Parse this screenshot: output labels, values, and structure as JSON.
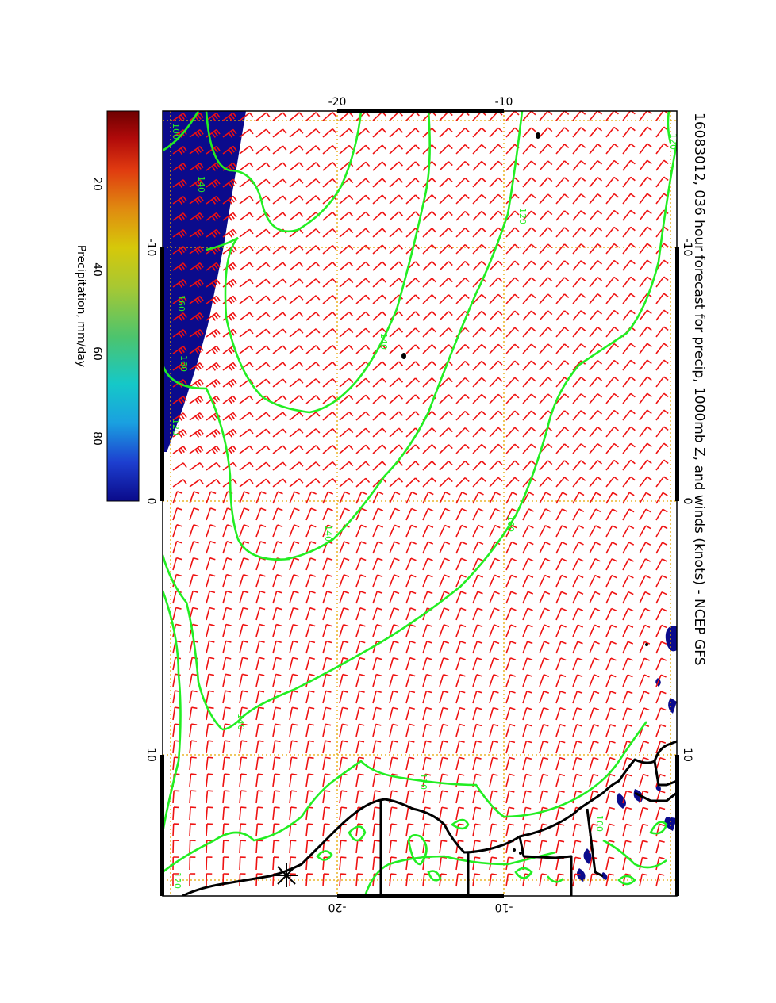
{
  "title": "16083012, 036 hour forecast for precip, 1000mb Z, and winds (knots) - NCEP GFS",
  "colorbar": {
    "label": "Precipitation, mm/day",
    "ticks": [
      "20",
      "40",
      "60",
      "80"
    ],
    "colors": [
      "#0a0a8a",
      "#1d3fd0",
      "#1aa0e0",
      "#15c8c8",
      "#4cc46e",
      "#a8c832",
      "#d6c80a",
      "#e08a10",
      "#e03a10",
      "#b00a0a",
      "#6e0000"
    ]
  },
  "axes": {
    "top": [
      "-20",
      "-10"
    ],
    "bottom": [
      "-20",
      "-10"
    ],
    "left": [
      "-10",
      "0",
      "10"
    ],
    "right": [
      "-10",
      "0",
      "10"
    ]
  },
  "contour_labels": [
    "100",
    "120",
    "140",
    "120",
    "160",
    "140",
    "160",
    "120",
    "140",
    "160",
    "140",
    "120",
    "100",
    "120"
  ],
  "colors": {
    "contour": "#22ee22",
    "wind_barb": "#ee1111",
    "precip": "#0b0b8c",
    "coastline": "#000000",
    "gridline": "#e6a800",
    "frame": "#000000"
  },
  "icons": [
    "wind-barb-icon",
    "star-marker-icon"
  ]
}
